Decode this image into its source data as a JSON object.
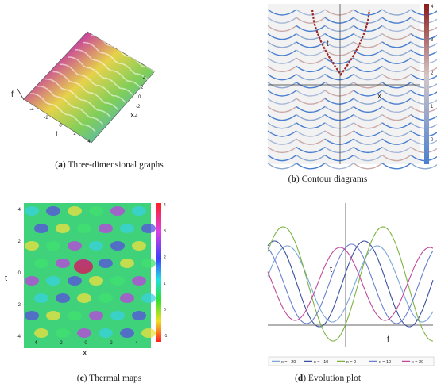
{
  "figure": {
    "panels": [
      {
        "id": "a",
        "letter": "a",
        "caption": "Three-dimensional graphs",
        "axis_labels": {
          "f": "f",
          "x": "x",
          "t": "t"
        },
        "ticks_x": [
          "4",
          "2",
          "0",
          "-2",
          "-4"
        ],
        "ticks_t": [
          "-4",
          "-2",
          "0",
          "2",
          "4"
        ]
      },
      {
        "id": "b",
        "letter": "b",
        "caption": "Contour diagrams",
        "axis_labels": {
          "t": "t",
          "x": "x"
        },
        "colorbar_ticks": [
          "4",
          "3",
          "2",
          "1",
          "0"
        ],
        "colorbar_colors": [
          "#8b1a1a",
          "#d6c7c7",
          "#4a7fd0"
        ]
      },
      {
        "id": "c",
        "letter": "c",
        "caption": "Thermal maps",
        "axis_labels": {
          "t": "t",
          "x": "x"
        },
        "ticks_x": [
          "-4",
          "-2",
          "0",
          "2",
          "4"
        ],
        "ticks_t": [
          "4",
          "2",
          "0",
          "-2",
          "-4"
        ],
        "colorbar_ticks": [
          "4",
          "3",
          "2",
          "1",
          "0",
          "-1"
        ]
      },
      {
        "id": "d",
        "letter": "d",
        "caption": "Evolution plot",
        "axis_labels": {
          "t": "t",
          "f": "f"
        },
        "legend": [
          {
            "label": "x = −20",
            "color": "#7aa6d8"
          },
          {
            "label": "x = −10",
            "color": "#3a4fa0"
          },
          {
            "label": "x = 0",
            "color": "#7cb342"
          },
          {
            "label": "x = 10",
            "color": "#6a7fd0"
          },
          {
            "label": "x = 20",
            "color": "#c04a9a"
          }
        ]
      }
    ]
  }
}
